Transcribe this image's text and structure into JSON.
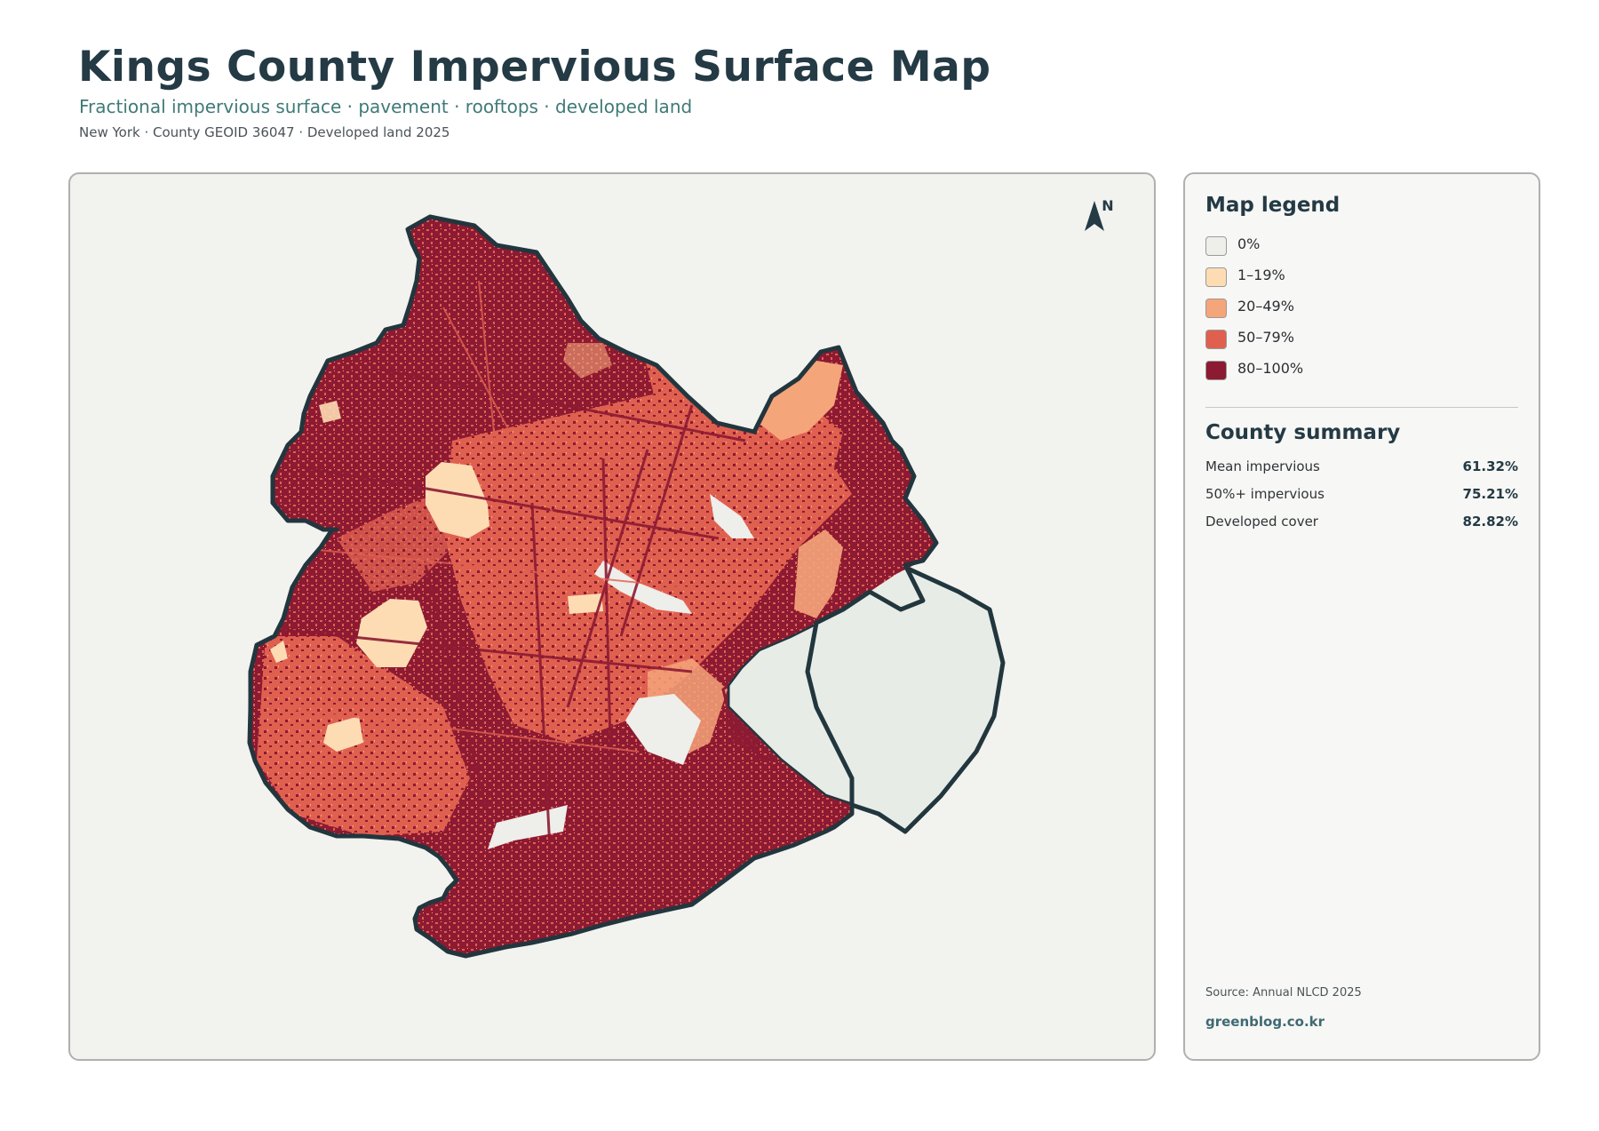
{
  "header": {
    "title": "Kings County Impervious Surface Map",
    "subtitle": "Fractional impervious surface · pavement · rooftops · developed land",
    "meta": "New York · County GEOID 36047 · Developed land 2025"
  },
  "map": {
    "north_label": "N",
    "north_icon": "north-arrow-icon",
    "water_color": "#e8ece6",
    "boundary_color": "#22363e"
  },
  "legend": {
    "title": "Map legend",
    "items": [
      {
        "label": "0%",
        "color": "#eeeeea"
      },
      {
        "label": "1–19%",
        "color": "#fddcb4"
      },
      {
        "label": "20–49%",
        "color": "#f5a57a"
      },
      {
        "label": "50–79%",
        "color": "#e06050"
      },
      {
        "label": "80–100%",
        "color": "#8c1a32"
      }
    ]
  },
  "summary": {
    "title": "County summary",
    "rows": [
      {
        "label": "Mean impervious",
        "value": "61.32%"
      },
      {
        "label": "50%+ impervious",
        "value": "75.21%"
      },
      {
        "label": "Developed cover",
        "value": "82.82%"
      }
    ]
  },
  "footer": {
    "source": "Source: Annual NLCD 2025",
    "site": "greenblog.co.kr"
  }
}
